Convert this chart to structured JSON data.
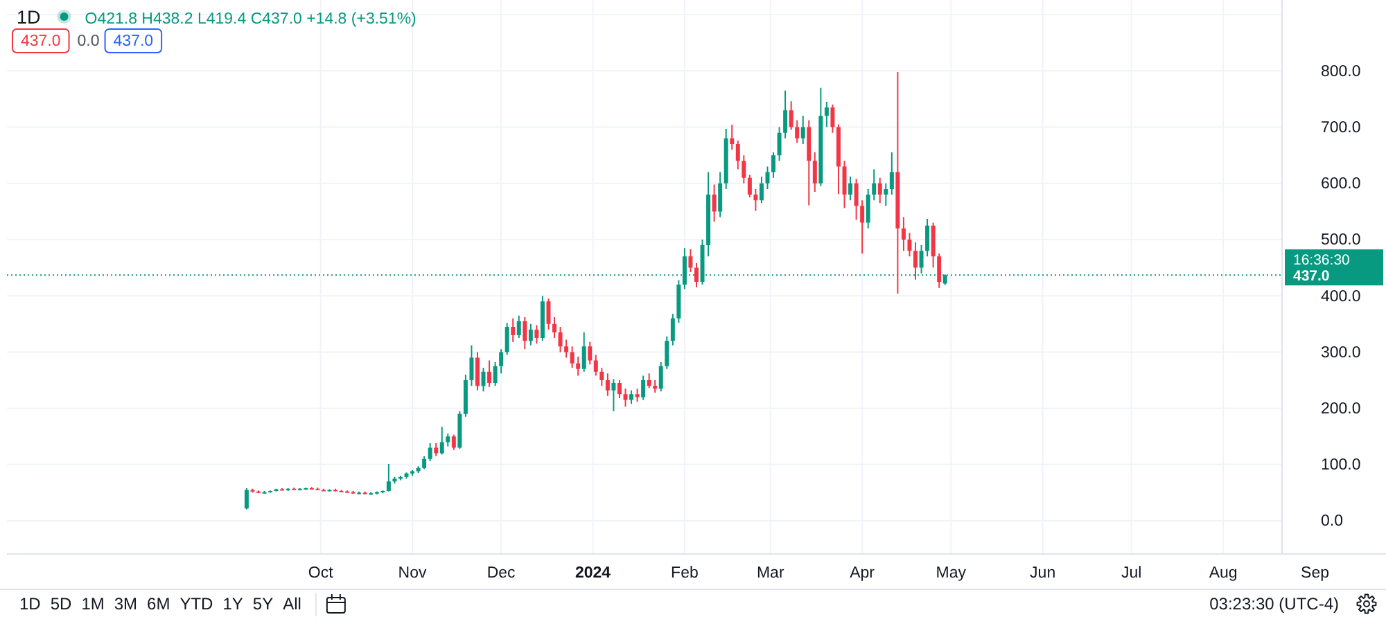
{
  "chart_data": {
    "type": "candlestick",
    "title": "1D",
    "subtitle": "O421.8 H438.2 L419.4 C437.0 +14.8 (+3.51%)",
    "x": [
      "2023-09-06",
      "2023-09-08",
      "2023-09-10",
      "2023-09-12",
      "2023-09-14",
      "2023-09-16",
      "2023-09-18",
      "2023-09-20",
      "2023-09-22",
      "2023-09-24",
      "2023-09-26",
      "2023-09-28",
      "2023-09-30",
      "2023-10-02",
      "2023-10-04",
      "2023-10-06",
      "2023-10-08",
      "2023-10-10",
      "2023-10-12",
      "2023-10-14",
      "2023-10-16",
      "2023-10-18",
      "2023-10-20",
      "2023-10-22",
      "2023-10-24",
      "2023-10-26",
      "2023-10-28",
      "2023-10-30",
      "2023-11-01",
      "2023-11-03",
      "2023-11-05",
      "2023-11-07",
      "2023-11-09",
      "2023-11-11",
      "2023-11-13",
      "2023-11-15",
      "2023-11-17",
      "2023-11-19",
      "2023-11-21",
      "2023-11-23",
      "2023-11-25",
      "2023-11-27",
      "2023-11-29",
      "2023-12-01",
      "2023-12-03",
      "2023-12-05",
      "2023-12-07",
      "2023-12-09",
      "2023-12-11",
      "2023-12-13",
      "2023-12-15",
      "2023-12-17",
      "2023-12-19",
      "2023-12-21",
      "2023-12-23",
      "2023-12-25",
      "2023-12-27",
      "2023-12-29",
      "2023-12-31",
      "2024-01-02",
      "2024-01-04",
      "2024-01-06",
      "2024-01-08",
      "2024-01-10",
      "2024-01-12",
      "2024-01-14",
      "2024-01-16",
      "2024-01-18",
      "2024-01-20",
      "2024-01-22",
      "2024-01-24",
      "2024-01-26",
      "2024-01-28",
      "2024-01-30",
      "2024-02-01",
      "2024-02-03",
      "2024-02-05",
      "2024-02-07",
      "2024-02-09",
      "2024-02-11",
      "2024-02-13",
      "2024-02-15",
      "2024-02-17",
      "2024-02-19",
      "2024-02-21",
      "2024-02-23",
      "2024-02-25",
      "2024-02-27",
      "2024-02-29",
      "2024-03-02",
      "2024-03-04",
      "2024-03-06",
      "2024-03-08",
      "2024-03-10",
      "2024-03-12",
      "2024-03-14",
      "2024-03-16",
      "2024-03-18",
      "2024-03-20",
      "2024-03-22",
      "2024-03-24",
      "2024-03-26",
      "2024-03-28",
      "2024-03-30",
      "2024-04-01",
      "2024-04-03",
      "2024-04-05",
      "2024-04-07",
      "2024-04-09",
      "2024-04-11",
      "2024-04-13",
      "2024-04-15",
      "2024-04-17",
      "2024-04-19",
      "2024-04-21",
      "2024-04-23",
      "2024-04-25",
      "2024-04-27",
      "2024-04-29"
    ],
    "ohlc": [
      [
        22,
        58,
        20,
        55
      ],
      [
        55,
        57,
        50,
        52
      ],
      [
        52,
        54,
        49,
        50
      ],
      [
        50,
        53,
        48,
        51
      ],
      [
        51,
        54,
        50,
        53
      ],
      [
        53,
        57,
        52,
        56
      ],
      [
        56,
        58,
        54,
        55
      ],
      [
        55,
        58,
        53,
        57
      ],
      [
        57,
        59,
        55,
        56
      ],
      [
        56,
        58,
        54,
        57
      ],
      [
        57,
        59,
        55,
        58
      ],
      [
        58,
        60,
        56,
        57
      ],
      [
        57,
        59,
        55,
        55
      ],
      [
        55,
        57,
        53,
        54
      ],
      [
        54,
        56,
        52,
        55
      ],
      [
        55,
        57,
        52,
        53
      ],
      [
        53,
        55,
        51,
        52
      ],
      [
        52,
        54,
        50,
        51
      ],
      [
        51,
        53,
        48,
        49
      ],
      [
        49,
        52,
        47,
        50
      ],
      [
        50,
        52,
        47,
        48
      ],
      [
        48,
        51,
        46,
        49
      ],
      [
        49,
        52,
        47,
        51
      ],
      [
        51,
        54,
        49,
        53
      ],
      [
        53,
        101,
        52,
        70
      ],
      [
        70,
        78,
        66,
        75
      ],
      [
        75,
        80,
        72,
        78
      ],
      [
        78,
        86,
        75,
        84
      ],
      [
        84,
        90,
        80,
        88
      ],
      [
        88,
        97,
        85,
        94
      ],
      [
        94,
        115,
        92,
        110
      ],
      [
        110,
        138,
        106,
        130
      ],
      [
        130,
        138,
        115,
        120
      ],
      [
        120,
        167,
        118,
        140
      ],
      [
        140,
        155,
        132,
        150
      ],
      [
        150,
        153,
        126,
        130
      ],
      [
        130,
        195,
        128,
        190
      ],
      [
        190,
        260,
        185,
        250
      ],
      [
        250,
        312,
        240,
        290
      ],
      [
        290,
        300,
        232,
        240
      ],
      [
        240,
        272,
        230,
        265
      ],
      [
        265,
        285,
        238,
        245
      ],
      [
        245,
        282,
        240,
        275
      ],
      [
        275,
        305,
        262,
        300
      ],
      [
        300,
        352,
        295,
        345
      ],
      [
        345,
        360,
        318,
        330
      ],
      [
        330,
        365,
        325,
        355
      ],
      [
        355,
        362,
        305,
        320
      ],
      [
        320,
        350,
        312,
        340
      ],
      [
        340,
        348,
        315,
        325
      ],
      [
        325,
        400,
        320,
        390
      ],
      [
        390,
        395,
        340,
        350
      ],
      [
        350,
        362,
        325,
        335
      ],
      [
        335,
        345,
        300,
        310
      ],
      [
        310,
        322,
        290,
        300
      ],
      [
        300,
        310,
        272,
        280
      ],
      [
        280,
        292,
        258,
        270
      ],
      [
        270,
        335,
        265,
        310
      ],
      [
        310,
        318,
        278,
        285
      ],
      [
        285,
        295,
        258,
        265
      ],
      [
        265,
        272,
        240,
        250
      ],
      [
        250,
        262,
        222,
        232
      ],
      [
        232,
        252,
        195,
        245
      ],
      [
        245,
        250,
        218,
        225
      ],
      [
        225,
        235,
        203,
        215
      ],
      [
        215,
        232,
        208,
        225
      ],
      [
        225,
        235,
        212,
        220
      ],
      [
        220,
        258,
        215,
        250
      ],
      [
        250,
        262,
        236,
        240
      ],
      [
        240,
        250,
        228,
        235
      ],
      [
        235,
        282,
        230,
        275
      ],
      [
        275,
        328,
        270,
        320
      ],
      [
        320,
        368,
        312,
        360
      ],
      [
        360,
        428,
        352,
        420
      ],
      [
        420,
        485,
        412,
        470
      ],
      [
        470,
        483,
        442,
        450
      ],
      [
        450,
        458,
        415,
        425
      ],
      [
        425,
        500,
        420,
        490
      ],
      [
        490,
        620,
        470,
        580
      ],
      [
        580,
        598,
        532,
        550
      ],
      [
        550,
        620,
        540,
        600
      ],
      [
        600,
        697,
        590,
        680
      ],
      [
        680,
        704,
        660,
        670
      ],
      [
        670,
        676,
        625,
        640
      ],
      [
        640,
        650,
        600,
        610
      ],
      [
        610,
        615,
        575,
        580
      ],
      [
        580,
        590,
        551,
        570
      ],
      [
        570,
        612,
        565,
        600
      ],
      [
        600,
        630,
        590,
        620
      ],
      [
        620,
        655,
        610,
        650
      ],
      [
        650,
        700,
        640,
        690
      ],
      [
        690,
        765,
        680,
        730
      ],
      [
        730,
        746,
        695,
        700
      ],
      [
        700,
        712,
        672,
        680
      ],
      [
        680,
        720,
        670,
        700
      ],
      [
        700,
        712,
        561,
        640
      ],
      [
        640,
        655,
        585,
        600
      ],
      [
        600,
        770,
        595,
        720
      ],
      [
        720,
        745,
        700,
        735
      ],
      [
        735,
        740,
        690,
        700
      ],
      [
        700,
        705,
        581,
        630
      ],
      [
        630,
        640,
        556,
        580
      ],
      [
        580,
        612,
        570,
        600
      ],
      [
        600,
        608,
        535,
        560
      ],
      [
        560,
        570,
        475,
        530
      ],
      [
        530,
        590,
        520,
        580
      ],
      [
        580,
        625,
        570,
        600
      ],
      [
        600,
        610,
        565,
        580
      ],
      [
        580,
        600,
        560,
        590
      ],
      [
        590,
        655,
        580,
        620
      ],
      [
        620,
        798,
        404,
        520
      ],
      [
        520,
        540,
        480,
        500
      ],
      [
        500,
        512,
        470,
        480
      ],
      [
        480,
        495,
        429,
        450
      ],
      [
        450,
        490,
        440,
        480
      ],
      [
        480,
        537,
        470,
        525
      ],
      [
        525,
        530,
        450,
        470
      ],
      [
        470,
        475,
        414,
        425
      ],
      [
        421.8,
        438.2,
        419.4,
        437.0
      ]
    ],
    "xlim": [
      "2023-06-17",
      "2024-09-25"
    ],
    "xticks": [
      {
        "value": "2023-10-01",
        "label": "Oct"
      },
      {
        "value": "2023-11-01",
        "label": "Nov"
      },
      {
        "value": "2023-12-01",
        "label": "Dec"
      },
      {
        "value": "2024-01-01",
        "label": "2024"
      },
      {
        "value": "2024-02-01",
        "label": "Feb"
      },
      {
        "value": "2024-03-01",
        "label": "Mar"
      },
      {
        "value": "2024-04-01",
        "label": "Apr"
      },
      {
        "value": "2024-05-01",
        "label": "May"
      },
      {
        "value": "2024-06-01",
        "label": "Jun"
      },
      {
        "value": "2024-07-01",
        "label": "Jul"
      },
      {
        "value": "2024-08-01",
        "label": "Aug"
      },
      {
        "value": "2024-09-01",
        "label": "Sep"
      }
    ],
    "ylim": [
      -59,
      926
    ],
    "yticks": [
      {
        "value": 0,
        "label": "0.0"
      },
      {
        "value": 100,
        "label": "100.0"
      },
      {
        "value": 200,
        "label": "200.0"
      },
      {
        "value": 300,
        "label": "300.0"
      },
      {
        "value": 400,
        "label": "400.0"
      },
      {
        "value": 500,
        "label": "500.0"
      },
      {
        "value": 600,
        "label": "600.0"
      },
      {
        "value": 700,
        "label": "700.0"
      },
      {
        "value": 800,
        "label": "800.0"
      },
      {
        "value": 900,
        "label": null
      }
    ],
    "grid": true,
    "ref_lines": [
      {
        "axis": "y",
        "value": 437,
        "label": "437.0",
        "color": "#089981",
        "line_style": "dotted"
      }
    ],
    "annotations": [
      "437.0",
      "0.0",
      "437.0",
      "16:36:30",
      "1D",
      "5D",
      "1M",
      "3M",
      "6M",
      "YTD",
      "1Y",
      "5Y",
      "All",
      "03:23:30 (UTC-4)"
    ]
  }
}
